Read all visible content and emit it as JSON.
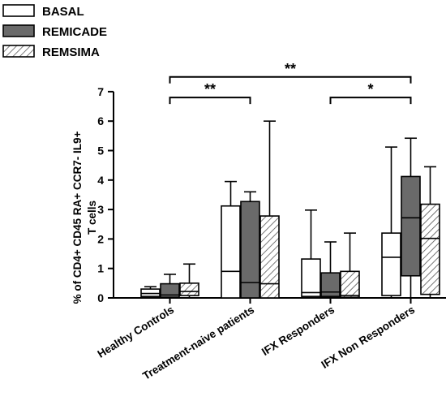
{
  "chart_data": {
    "type": "box",
    "categories": [
      "Healthy Controls",
      "Treatment-naive patients",
      "IFX Responders",
      "IFX Non Responders"
    ],
    "ylabel": "% of CD4+ CD45 RA+ CCR7- IL9+ T cells",
    "ylim": [
      0,
      7
    ],
    "yticks": [
      "0",
      "1",
      "2",
      "3",
      "4",
      "5",
      "6",
      "7"
    ],
    "grid": false,
    "legend_position": "top-left",
    "series": [
      {
        "name": "BASAL",
        "pattern": "white",
        "boxes": [
          {
            "min": 0.0,
            "q1": 0.05,
            "median": 0.15,
            "q3": 0.3,
            "max": 0.38
          },
          {
            "min": 0.0,
            "q1": 0.0,
            "median": 0.9,
            "q3": 3.12,
            "max": 3.95
          },
          {
            "min": 0.0,
            "q1": 0.05,
            "median": 0.18,
            "q3": 1.32,
            "max": 2.98
          },
          {
            "min": 0.0,
            "q1": 0.08,
            "median": 1.38,
            "q3": 2.2,
            "max": 5.12
          }
        ]
      },
      {
        "name": "REMICADE",
        "pattern": "gray",
        "boxes": [
          {
            "min": 0.0,
            "q1": 0.02,
            "median": 0.1,
            "q3": 0.48,
            "max": 0.8
          },
          {
            "min": 0.0,
            "q1": 0.0,
            "median": 0.52,
            "q3": 3.27,
            "max": 3.6
          },
          {
            "min": 0.0,
            "q1": 0.05,
            "median": 0.2,
            "q3": 0.85,
            "max": 1.9
          },
          {
            "min": 0.0,
            "q1": 0.75,
            "median": 2.72,
            "q3": 4.12,
            "max": 5.42
          }
        ]
      },
      {
        "name": "REMSIMA",
        "pattern": "hatched",
        "boxes": [
          {
            "min": 0.0,
            "q1": 0.08,
            "median": 0.22,
            "q3": 0.5,
            "max": 1.15
          },
          {
            "min": 0.0,
            "q1": 0.0,
            "median": 0.48,
            "q3": 2.78,
            "max": 6.0
          },
          {
            "min": 0.0,
            "q1": 0.02,
            "median": 0.08,
            "q3": 0.9,
            "max": 2.2
          },
          {
            "min": 0.0,
            "q1": 0.12,
            "median": 2.02,
            "q3": 3.18,
            "max": 4.45
          }
        ]
      }
    ],
    "significance": [
      {
        "from": "Healthy Controls",
        "to": "IFX Non Responders",
        "label": "**"
      },
      {
        "from": "Healthy Controls",
        "to": "Treatment-naive patients",
        "label": "**"
      },
      {
        "from": "IFX Responders",
        "to": "IFX Non Responders",
        "label": "*"
      }
    ]
  }
}
